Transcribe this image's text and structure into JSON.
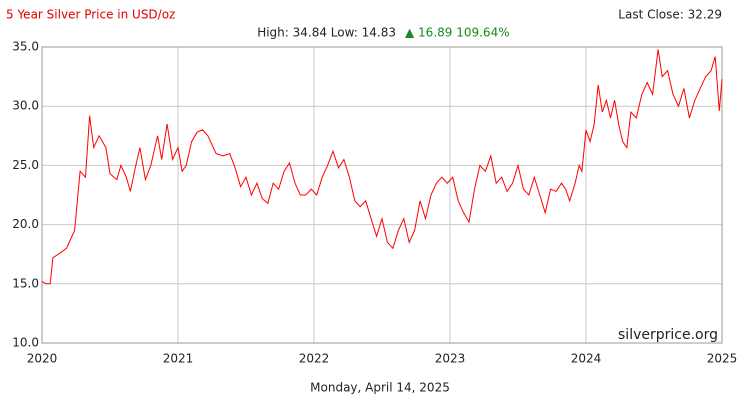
{
  "chart_data": {
    "type": "line",
    "title": "5 Year Silver Price in USD/oz",
    "high_low": "High: 34.84 Low: 14.83",
    "change": "▲ 16.89 109.64%",
    "last_close": "Last Close: 32.29",
    "source": "silverprice.org",
    "date": "Monday, April 14, 2025",
    "xlim": [
      2020,
      2025
    ],
    "xticks": [
      2020,
      2021,
      2022,
      2023,
      2024,
      2025
    ],
    "ylim": [
      10,
      35
    ],
    "yticks": [
      {
        "value": 10,
        "label": "10.0"
      },
      {
        "value": 15,
        "label": "15.0"
      },
      {
        "value": 20,
        "label": "20.0"
      },
      {
        "value": 25,
        "label": "25.0"
      },
      {
        "value": 30,
        "label": "30.0"
      },
      {
        "value": 35,
        "label": "35.0"
      }
    ],
    "grid": true,
    "series": [
      {
        "name": "Silver",
        "color": "#ff0000",
        "x": [
          2020.0,
          2020.03,
          2020.06,
          2020.08,
          2020.12,
          2020.18,
          2020.24,
          2020.28,
          2020.32,
          2020.35,
          2020.38,
          2020.42,
          2020.47,
          2020.5,
          2020.55,
          2020.58,
          2020.62,
          2020.65,
          2020.68,
          2020.72,
          2020.76,
          2020.8,
          2020.85,
          2020.88,
          2020.92,
          2020.96,
          2021.0,
          2021.03,
          2021.06,
          2021.1,
          2021.14,
          2021.18,
          2021.22,
          2021.28,
          2021.33,
          2021.38,
          2021.42,
          2021.46,
          2021.5,
          2021.54,
          2021.58,
          2021.62,
          2021.66,
          2021.7,
          2021.74,
          2021.78,
          2021.82,
          2021.86,
          2021.9,
          2021.94,
          2021.98,
          2022.02,
          2022.06,
          2022.1,
          2022.14,
          2022.18,
          2022.22,
          2022.26,
          2022.3,
          2022.34,
          2022.38,
          2022.42,
          2022.46,
          2022.5,
          2022.54,
          2022.58,
          2022.62,
          2022.66,
          2022.7,
          2022.74,
          2022.78,
          2022.82,
          2022.86,
          2022.9,
          2022.94,
          2022.98,
          2023.02,
          2023.06,
          2023.1,
          2023.14,
          2023.18,
          2023.22,
          2023.26,
          2023.3,
          2023.34,
          2023.38,
          2023.42,
          2023.46,
          2023.5,
          2023.54,
          2023.58,
          2023.62,
          2023.66,
          2023.7,
          2023.74,
          2023.78,
          2023.82,
          2023.85,
          2023.88,
          2023.92,
          2023.95,
          2023.97,
          2024.0,
          2024.03,
          2024.06,
          2024.09,
          2024.12,
          2024.15,
          2024.18,
          2024.21,
          2024.24,
          2024.27,
          2024.3,
          2024.33,
          2024.37,
          2024.41,
          2024.45,
          2024.49,
          2024.53,
          2024.56,
          2024.6,
          2024.64,
          2024.68,
          2024.72,
          2024.76,
          2024.8,
          2024.84,
          2024.88,
          2024.92,
          2024.95,
          2024.98,
          2025.0
        ],
        "values": [
          15.2,
          15.0,
          15.0,
          17.2,
          17.5,
          18.0,
          19.5,
          24.5,
          24.0,
          29.2,
          26.5,
          27.5,
          26.5,
          24.3,
          23.8,
          25.0,
          24.0,
          22.8,
          24.5,
          26.5,
          23.8,
          25.0,
          27.5,
          25.5,
          28.5,
          25.5,
          26.5,
          24.5,
          25.0,
          27.0,
          27.8,
          28.0,
          27.5,
          26.0,
          25.8,
          26.0,
          24.8,
          23.2,
          24.0,
          22.5,
          23.5,
          22.2,
          21.8,
          23.5,
          23.0,
          24.5,
          25.2,
          23.5,
          22.5,
          22.5,
          23.0,
          22.5,
          24.0,
          25.0,
          26.2,
          24.8,
          25.5,
          24.0,
          22.0,
          21.5,
          22.0,
          20.5,
          19.0,
          20.5,
          18.5,
          18.0,
          19.5,
          20.5,
          18.5,
          19.5,
          22.0,
          20.5,
          22.5,
          23.5,
          24.0,
          23.5,
          24.0,
          22.0,
          21.0,
          20.2,
          23.0,
          25.0,
          24.5,
          25.8,
          23.5,
          24.0,
          22.8,
          23.5,
          25.0,
          23.0,
          22.5,
          24.0,
          22.5,
          21.0,
          23.0,
          22.8,
          23.5,
          23.0,
          22.0,
          23.5,
          25.0,
          24.5,
          28.0,
          27.0,
          28.5,
          31.8,
          29.5,
          30.5,
          29.0,
          30.5,
          28.5,
          27.0,
          26.5,
          29.5,
          29.0,
          31.0,
          32.0,
          31.0,
          34.8,
          32.5,
          33.0,
          31.0,
          30.0,
          31.5,
          29.0,
          30.5,
          31.5,
          32.5,
          33.0,
          34.2,
          29.6,
          32.3
        ]
      }
    ]
  }
}
